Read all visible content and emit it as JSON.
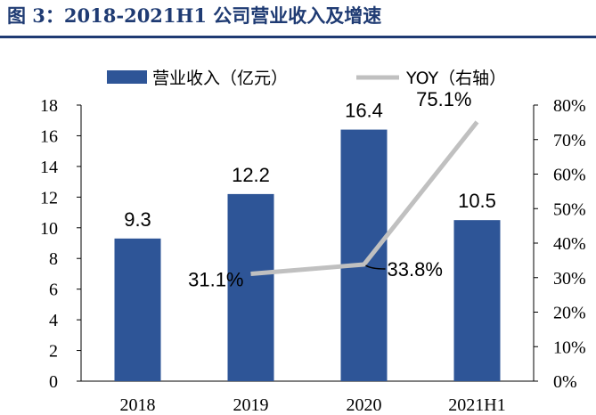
{
  "title": "图 3：2018-2021H1 公司营业收入及增速",
  "chart_data": {
    "type": "bar+line",
    "categories": [
      "2018",
      "2019",
      "2020",
      "2021H1"
    ],
    "series": [
      {
        "name": "营业收入（亿元）",
        "type": "bar",
        "axis": "left",
        "values": [
          9.3,
          12.2,
          16.4,
          10.5
        ],
        "labels": [
          "9.3",
          "12.2",
          "16.4",
          "10.5"
        ],
        "color": "#2e5597"
      },
      {
        "name": "YOY（右轴）",
        "type": "line",
        "axis": "right",
        "values": [
          31.1,
          33.8,
          75.1
        ],
        "x": [
          "2019",
          "2020",
          "2021H1"
        ],
        "labels": [
          "31.1%",
          "33.8%",
          "75.1%"
        ],
        "color": "#c0c0c0"
      }
    ],
    "ylim_left": [
      0,
      18
    ],
    "left_ticks": [
      "0",
      "2",
      "4",
      "6",
      "8",
      "10",
      "12",
      "14",
      "16",
      "18"
    ],
    "ylim_right": [
      0,
      80
    ],
    "right_ticks": [
      "0%",
      "10%",
      "20%",
      "30%",
      "40%",
      "50%",
      "60%",
      "70%",
      "80%"
    ],
    "legend_position": "top",
    "grid": false
  }
}
